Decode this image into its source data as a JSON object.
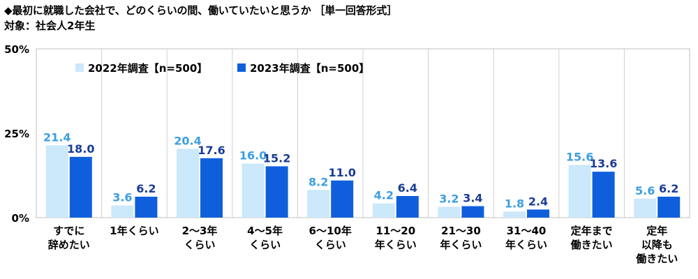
{
  "title": "◆最初に就職した会社で、どのくらいの間、働いていたいと思うか ［単一回答形式］",
  "subtitle": "対象：社会人2年生",
  "chart_data": {
    "type": "bar",
    "categories": [
      [
        "すでに",
        "辞めたい"
      ],
      [
        "1年くらい"
      ],
      [
        "2～3年",
        "くらい"
      ],
      [
        "4～5年",
        "くらい"
      ],
      [
        "6～10年",
        "くらい"
      ],
      [
        "11～20",
        "年くらい"
      ],
      [
        "21～30",
        "年くらい"
      ],
      [
        "31～40",
        "年くらい"
      ],
      [
        "定年まで",
        "働きたい"
      ],
      [
        "定年",
        "以降も",
        "働きたい"
      ]
    ],
    "series": [
      {
        "name": "2022年調査【n=500】",
        "color": "#cce8fb",
        "label_color": "#3c9ee0",
        "values": [
          21.4,
          3.6,
          20.4,
          16.0,
          8.2,
          4.2,
          3.2,
          1.8,
          15.6,
          5.6
        ]
      },
      {
        "name": "2023年調査【n=500】",
        "color": "#0f5fdc",
        "label_color": "#1a3c96",
        "values": [
          18.0,
          6.2,
          17.6,
          15.2,
          11.0,
          6.4,
          3.4,
          2.4,
          13.6,
          6.2
        ]
      }
    ],
    "y_ticks": [
      "0%",
      "25%",
      "50%"
    ],
    "ylim": [
      0,
      50
    ],
    "legend_position": "top-left",
    "grid": "vertical-separators"
  }
}
